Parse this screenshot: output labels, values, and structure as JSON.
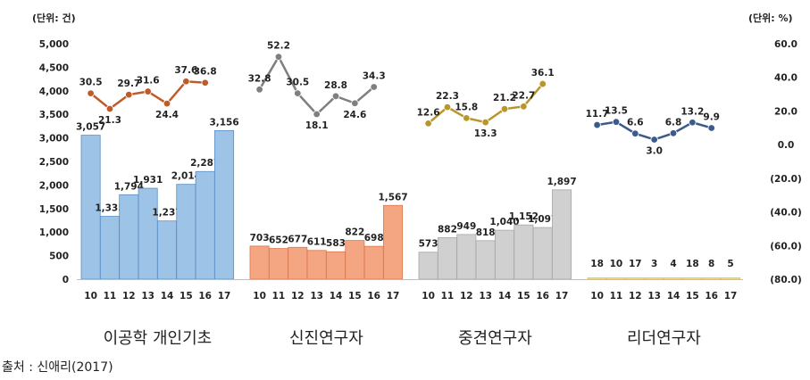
{
  "chart_data": {
    "type": "bar+line",
    "left_unit": "(단위: 건)",
    "right_unit": "(단위: %)",
    "left_axis": {
      "ticks": [
        "5,000",
        "4,500",
        "4,000",
        "3,500",
        "3,000",
        "2,500",
        "2,000",
        "1,500",
        "1,000",
        "500",
        "0"
      ],
      "range": [
        0,
        5000
      ]
    },
    "right_axis": {
      "ticks": [
        "60.0",
        "40.0",
        "20.0",
        "0.0",
        "(20.0)",
        "(40.0)",
        "(60.0)",
        "(80.0)"
      ],
      "range": [
        -80,
        60
      ]
    },
    "x": [
      "10",
      "11",
      "12",
      "13",
      "14",
      "15",
      "16",
      "17"
    ],
    "groups": [
      {
        "name": "이공학 개인기초",
        "bar_color": "#9dc3e6",
        "bar_stroke": "#5b8ec4",
        "line_color": "#c05a28",
        "bars": [
          3057,
          1335,
          1794,
          1931,
          1237,
          2014,
          2287,
          3156
        ],
        "bar_labels": [
          "3,057",
          "1,335",
          "1,794",
          "1,931",
          "1,237",
          "2,014",
          "2,287",
          "3,156"
        ],
        "line": [
          30.5,
          21.3,
          29.7,
          31.6,
          24.4,
          37.6,
          36.8
        ],
        "line_labels": [
          "30.5",
          "21.3",
          "29.7",
          "31.6",
          "24.4",
          "37.6",
          "36.8"
        ]
      },
      {
        "name": "신진연구자",
        "bar_color": "#f4a582",
        "bar_stroke": "#d9784d",
        "line_color": "#7f7f7f",
        "bars": [
          703,
          652,
          677,
          611,
          583,
          822,
          698,
          1567
        ],
        "bar_labels": [
          "703",
          "652",
          "677",
          "611",
          "583",
          "822",
          "698",
          "1,567"
        ],
        "line": [
          32.8,
          52.2,
          30.5,
          18.1,
          28.8,
          24.6,
          34.3
        ],
        "line_labels": [
          "32.8",
          "52.2",
          "30.5",
          "18.1",
          "28.8",
          "24.6",
          "34.3"
        ]
      },
      {
        "name": "중견연구자",
        "bar_color": "#d0d0d0",
        "bar_stroke": "#a6a6a6",
        "line_color": "#b8972a",
        "bars": [
          573,
          882,
          949,
          818,
          1040,
          1152,
          1097,
          1897
        ],
        "bar_labels": [
          "573",
          "882",
          "949",
          "818",
          "1,040",
          "1,152",
          "1,097",
          "1,897"
        ],
        "line": [
          12.6,
          22.3,
          15.8,
          13.3,
          21.2,
          22.7,
          36.1
        ],
        "line_labels": [
          "12.6",
          "22.3",
          "15.8",
          "13.3",
          "21.2",
          "22.7",
          "36.1"
        ]
      },
      {
        "name": "리더연구자",
        "bar_color": "#ffe699",
        "bar_stroke": "#e0c050",
        "line_color": "#3c5a8c",
        "bars": [
          18,
          10,
          17,
          3,
          4,
          18,
          8,
          5
        ],
        "bar_labels": [
          "18",
          "10",
          "17",
          "3",
          "4",
          "18",
          "8",
          "5"
        ],
        "line": [
          11.7,
          13.5,
          6.6,
          3.0,
          6.8,
          13.2,
          9.9
        ],
        "line_labels": [
          "11.7",
          "13.5",
          "6.6",
          "3.0",
          "6.8",
          "13.2",
          "9.9"
        ]
      }
    ],
    "legend": "none",
    "grid": false
  },
  "source": "출처 : 신애리(2017)"
}
